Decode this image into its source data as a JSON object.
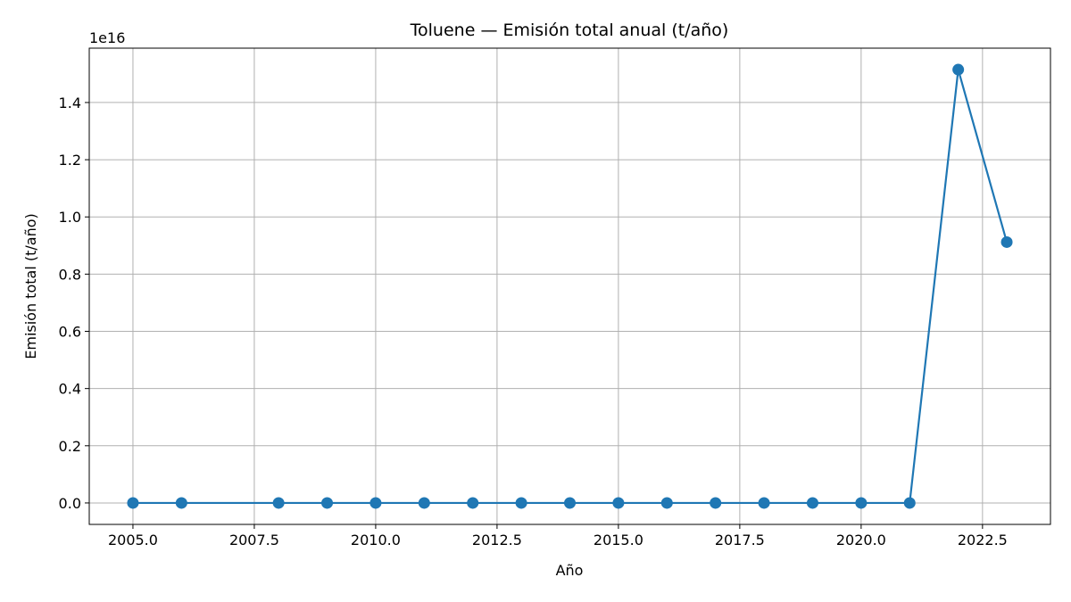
{
  "chart_data": {
    "type": "line",
    "title": "Toluene — Emisión total anual (t/año)",
    "xlabel": "Año",
    "ylabel": "Emisión total (t/año)",
    "y_offset_text": "1e16",
    "xlim": [
      2004.1,
      2023.9
    ],
    "ylim": [
      -0.075,
      1.59
    ],
    "x_ticks": [
      2005.0,
      2007.5,
      2010.0,
      2012.5,
      2015.0,
      2017.5,
      2020.0,
      2022.5
    ],
    "x_tick_labels": [
      "2005.0",
      "2007.5",
      "2010.0",
      "2012.5",
      "2015.0",
      "2017.5",
      "2020.0",
      "2022.5"
    ],
    "y_ticks": [
      0.0,
      0.2,
      0.4,
      0.6,
      0.8,
      1.0,
      1.2,
      1.4
    ],
    "y_tick_labels": [
      "0.0",
      "0.2",
      "0.4",
      "0.6",
      "0.8",
      "1.0",
      "1.2",
      "1.4"
    ],
    "grid": true,
    "color": "#1f77b4",
    "series": [
      {
        "x": [
          2005,
          2006,
          2008,
          2009,
          2010,
          2011,
          2012,
          2013,
          2014,
          2015,
          2016,
          2017,
          2018,
          2019,
          2020,
          2021,
          2022,
          2023
        ],
        "values": [
          0,
          0,
          0,
          0,
          0,
          0,
          0,
          0,
          0,
          0,
          0,
          0,
          0,
          0,
          0,
          0,
          1.515,
          0.912
        ]
      }
    ]
  }
}
